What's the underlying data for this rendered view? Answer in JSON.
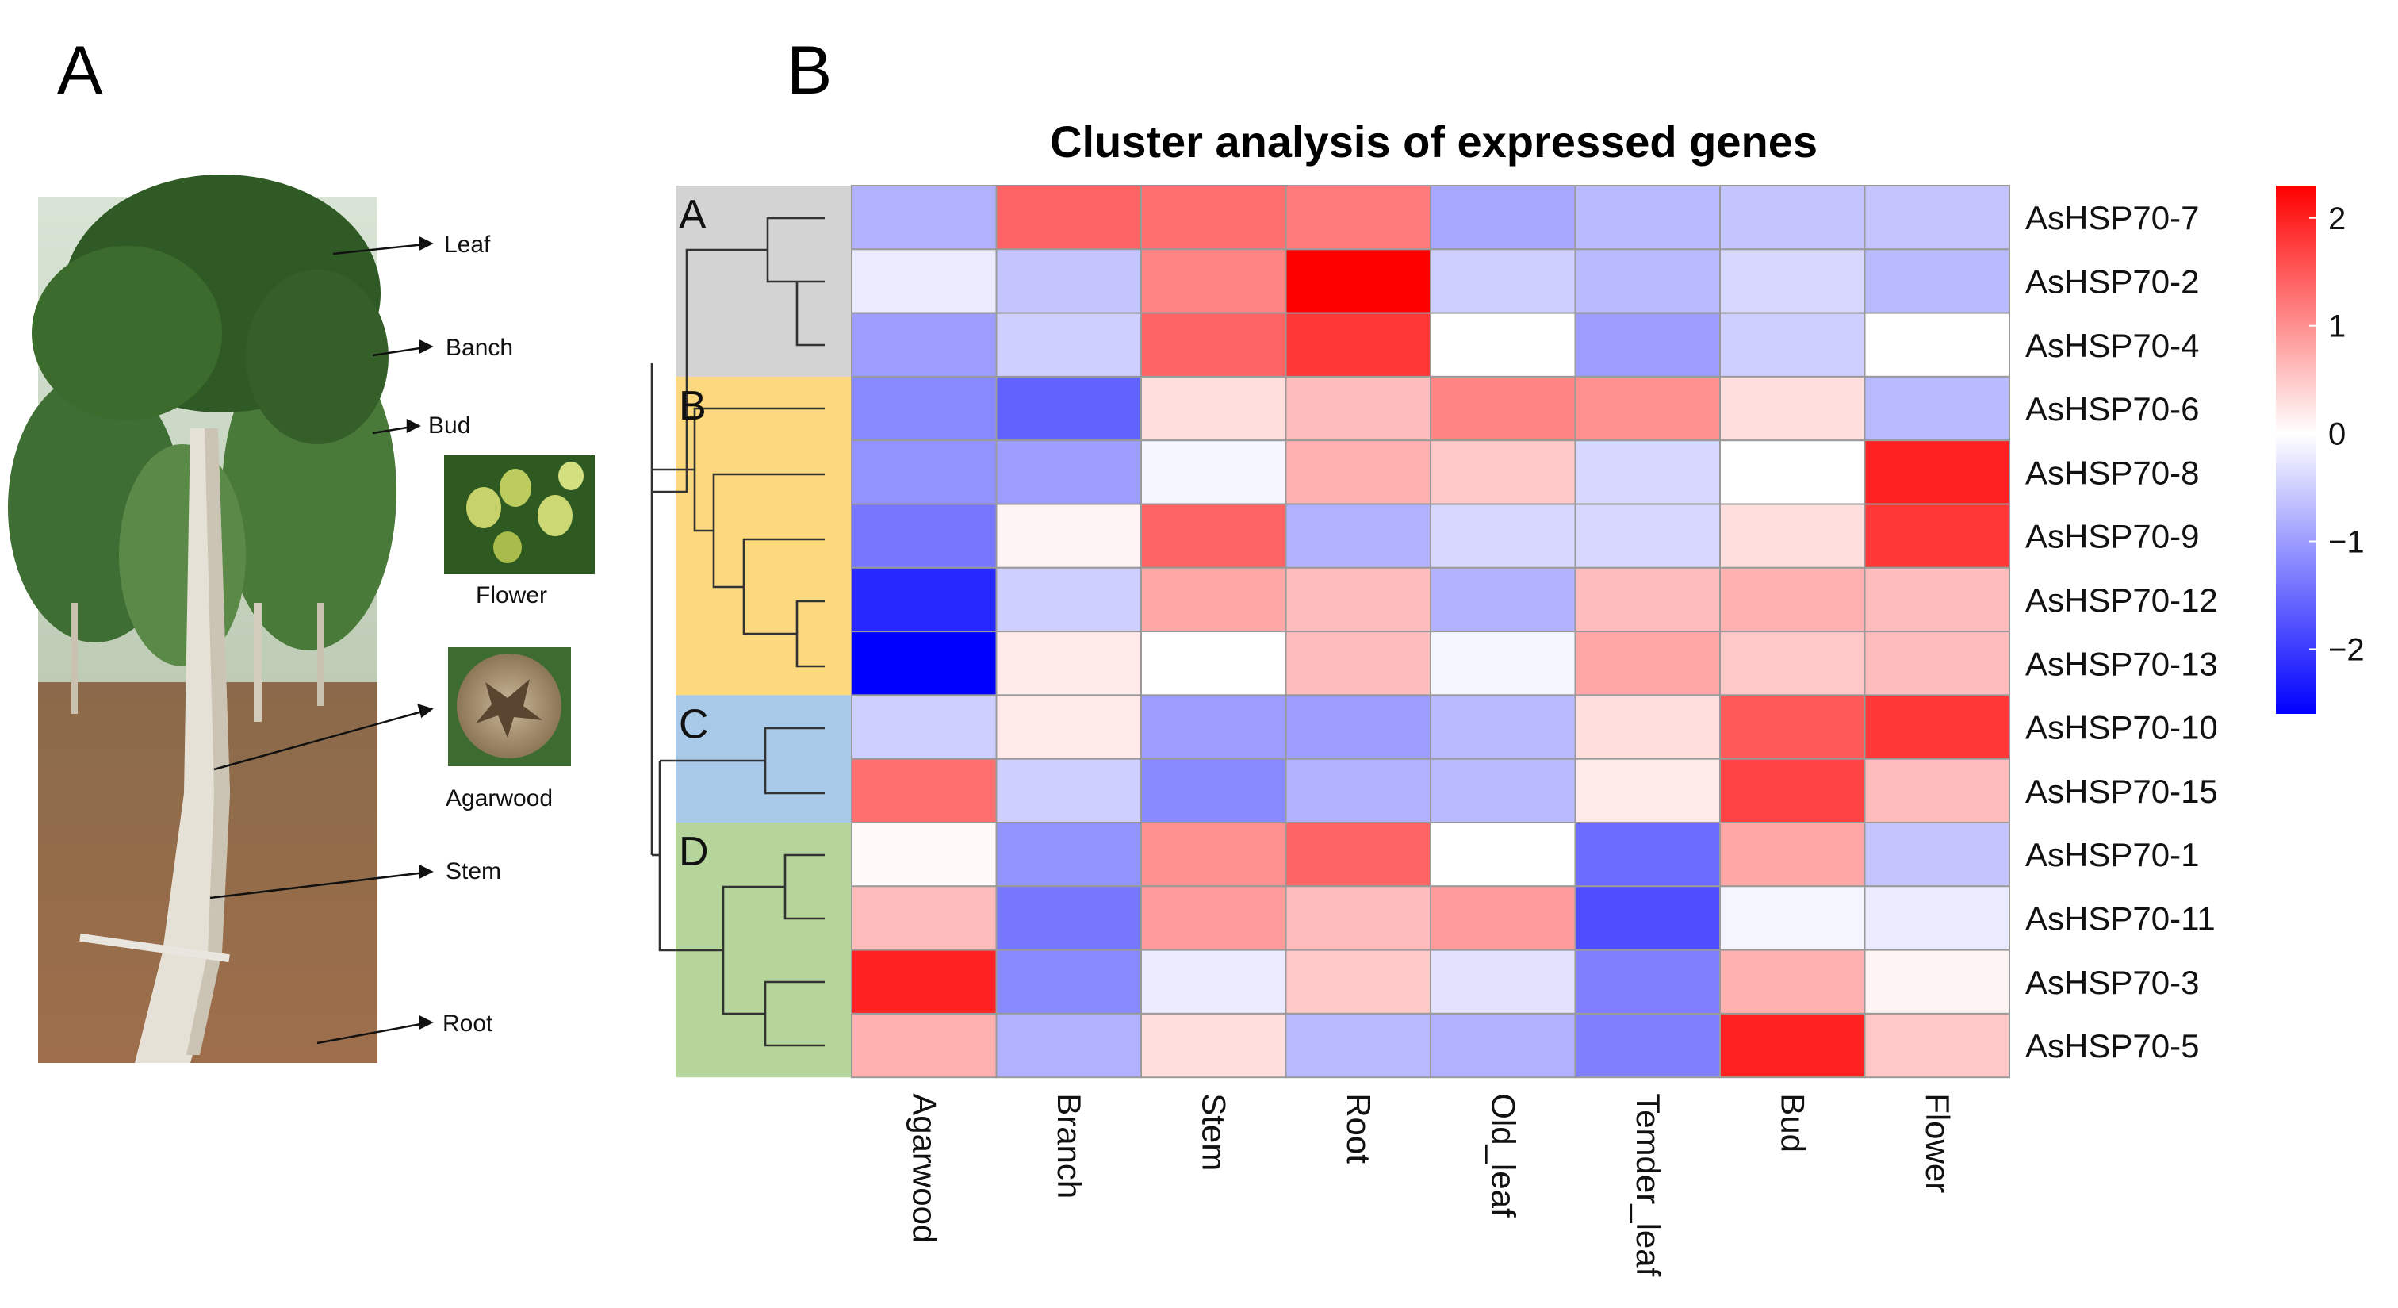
{
  "panels": {
    "a": "A",
    "b": "B"
  },
  "photo_labels": {
    "leaf": "Leaf",
    "branch": "Banch",
    "bud": "Bud",
    "flower": "Flower",
    "agarwood": "Agarwood",
    "stem": "Stem",
    "root": "Root"
  },
  "colors": {
    "low": "#0000ff",
    "mid": "#ffffff",
    "high": "#ff0000",
    "cluster_A": "#d3d3d3",
    "cluster_B": "#fcd97e",
    "cluster_C": "#a9c9e8",
    "cluster_D": "#b5d59a"
  },
  "chart_data": {
    "type": "heatmap",
    "title": "Cluster analysis of expressed genes",
    "columns": [
      "Agarwood",
      "Branch",
      "Stem",
      "Root",
      "Old_leaf",
      "Temder_leaf",
      "Bud",
      "Flower"
    ],
    "rows": [
      "AsHSP70-7",
      "AsHSP70-2",
      "AsHSP70-4",
      "AsHSP70-6",
      "AsHSP70-8",
      "AsHSP70-9",
      "AsHSP70-12",
      "AsHSP70-13",
      "AsHSP70-10",
      "AsHSP70-15",
      "AsHSP70-1",
      "AsHSP70-11",
      "AsHSP70-3",
      "AsHSP70-5"
    ],
    "values": [
      [
        -0.8,
        1.4,
        1.3,
        1.2,
        -0.9,
        -0.7,
        -0.6,
        -0.6
      ],
      [
        -0.2,
        -0.6,
        1.1,
        2.3,
        -0.5,
        -0.7,
        -0.4,
        -0.7
      ],
      [
        -1.0,
        -0.5,
        1.4,
        1.8,
        0.0,
        -1.0,
        -0.5,
        0.0
      ],
      [
        -1.2,
        -1.6,
        0.3,
        0.6,
        1.1,
        1.0,
        0.3,
        -0.7
      ],
      [
        -1.1,
        -1.0,
        -0.1,
        0.7,
        0.5,
        -0.4,
        0.0,
        2.0
      ],
      [
        -1.4,
        0.1,
        1.4,
        -0.8,
        -0.4,
        -0.4,
        0.3,
        1.8
      ],
      [
        -2.2,
        -0.5,
        0.8,
        0.6,
        -0.8,
        0.6,
        0.7,
        0.6
      ],
      [
        -2.6,
        0.2,
        0.0,
        0.6,
        -0.1,
        0.8,
        0.5,
        0.6
      ],
      [
        -0.5,
        0.2,
        -1.0,
        -1.0,
        -0.7,
        0.3,
        1.5,
        1.8
      ],
      [
        1.3,
        -0.5,
        -1.2,
        -0.8,
        -0.7,
        0.2,
        1.7,
        0.6
      ],
      [
        0.05,
        -1.1,
        1.0,
        1.4,
        0.0,
        -1.5,
        0.8,
        -0.6
      ],
      [
        0.6,
        -1.4,
        0.9,
        0.6,
        0.9,
        -1.8,
        -0.1,
        -0.2
      ],
      [
        2.0,
        -1.2,
        -0.2,
        0.5,
        -0.3,
        -1.3,
        0.7,
        0.1
      ],
      [
        0.7,
        -0.8,
        0.3,
        -0.7,
        -0.8,
        -1.3,
        2.0,
        0.5
      ]
    ],
    "clusters": [
      {
        "label": "A",
        "rows": [
          0,
          2
        ]
      },
      {
        "label": "B",
        "rows": [
          3,
          7
        ]
      },
      {
        "label": "C",
        "rows": [
          8,
          9
        ]
      },
      {
        "label": "D",
        "rows": [
          10,
          13
        ]
      }
    ],
    "colorbar": {
      "min": -2.6,
      "max": 2.3,
      "ticks": [
        "2",
        "1",
        "0",
        "−1",
        "−2"
      ],
      "tick_values": [
        2,
        1,
        0,
        -1,
        -2
      ]
    }
  }
}
